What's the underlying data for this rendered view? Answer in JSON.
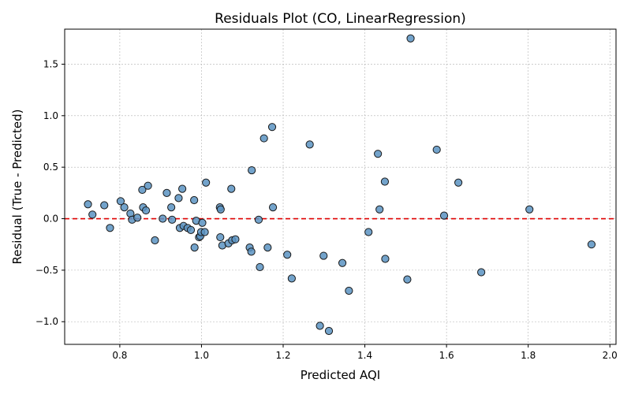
{
  "chart_data": {
    "type": "scatter",
    "title": "Residuals Plot (CO, LinearRegression)",
    "xlabel": "Predicted AQI",
    "ylabel": "Residual (True - Predicted)",
    "xlim": [
      0.665,
      2.015
    ],
    "ylim": [
      -1.22,
      1.84
    ],
    "xticks": [
      0.8,
      1.0,
      1.2,
      1.4,
      1.6,
      1.8,
      2.0
    ],
    "xtick_labels": [
      "0.8",
      "1.0",
      "1.2",
      "1.4",
      "1.6",
      "1.8",
      "2.0"
    ],
    "yticks": [
      -1.0,
      -0.5,
      0.0,
      0.5,
      1.0,
      1.5
    ],
    "ytick_labels": [
      "−1.0",
      "−0.5",
      "0.0",
      "0.5",
      "1.0",
      "1.5"
    ],
    "grid": true,
    "reference_line": {
      "y": 0,
      "style": "dashed",
      "color": "#e00000"
    },
    "marker_color": "#5b93c2",
    "marker_edge_color": "#1a1a1a",
    "points": [
      {
        "x": 0.722,
        "y": 0.14
      },
      {
        "x": 0.733,
        "y": 0.04
      },
      {
        "x": 0.762,
        "y": 0.13
      },
      {
        "x": 0.776,
        "y": -0.09
      },
      {
        "x": 0.802,
        "y": 0.17
      },
      {
        "x": 0.811,
        "y": 0.11
      },
      {
        "x": 0.826,
        "y": 0.05
      },
      {
        "x": 0.83,
        "y": -0.01
      },
      {
        "x": 0.843,
        "y": 0.01
      },
      {
        "x": 0.855,
        "y": 0.28
      },
      {
        "x": 0.857,
        "y": 0.11
      },
      {
        "x": 0.864,
        "y": 0.08
      },
      {
        "x": 0.869,
        "y": 0.32
      },
      {
        "x": 0.886,
        "y": -0.21
      },
      {
        "x": 0.905,
        "y": 0.0
      },
      {
        "x": 0.915,
        "y": 0.25
      },
      {
        "x": 0.926,
        "y": 0.11
      },
      {
        "x": 0.928,
        "y": -0.01
      },
      {
        "x": 0.944,
        "y": 0.2
      },
      {
        "x": 0.947,
        "y": -0.09
      },
      {
        "x": 0.953,
        "y": 0.29
      },
      {
        "x": 0.956,
        "y": -0.07
      },
      {
        "x": 0.966,
        "y": -0.09
      },
      {
        "x": 0.974,
        "y": -0.11
      },
      {
        "x": 0.982,
        "y": 0.18
      },
      {
        "x": 0.983,
        "y": -0.28
      },
      {
        "x": 0.987,
        "y": -0.02
      },
      {
        "x": 0.994,
        "y": -0.18
      },
      {
        "x": 0.997,
        "y": -0.17
      },
      {
        "x": 0.999,
        "y": -0.13
      },
      {
        "x": 1.002,
        "y": -0.04
      },
      {
        "x": 1.008,
        "y": -0.13
      },
      {
        "x": 1.011,
        "y": 0.35
      },
      {
        "x": 1.045,
        "y": 0.11
      },
      {
        "x": 1.046,
        "y": -0.18
      },
      {
        "x": 1.047,
        "y": 0.09
      },
      {
        "x": 1.051,
        "y": -0.26
      },
      {
        "x": 1.066,
        "y": -0.24
      },
      {
        "x": 1.073,
        "y": 0.29
      },
      {
        "x": 1.075,
        "y": -0.21
      },
      {
        "x": 1.083,
        "y": -0.2
      },
      {
        "x": 1.118,
        "y": -0.28
      },
      {
        "x": 1.122,
        "y": -0.32
      },
      {
        "x": 1.123,
        "y": 0.47
      },
      {
        "x": 1.14,
        "y": -0.01
      },
      {
        "x": 1.143,
        "y": -0.47
      },
      {
        "x": 1.153,
        "y": 0.78
      },
      {
        "x": 1.162,
        "y": -0.28
      },
      {
        "x": 1.173,
        "y": 0.89
      },
      {
        "x": 1.175,
        "y": 0.11
      },
      {
        "x": 1.21,
        "y": -0.35
      },
      {
        "x": 1.221,
        "y": -0.58
      },
      {
        "x": 1.265,
        "y": 0.72
      },
      {
        "x": 1.29,
        "y": -1.04
      },
      {
        "x": 1.299,
        "y": -0.36
      },
      {
        "x": 1.312,
        "y": -1.09
      },
      {
        "x": 1.345,
        "y": -0.43
      },
      {
        "x": 1.361,
        "y": -0.7
      },
      {
        "x": 1.409,
        "y": -0.13
      },
      {
        "x": 1.432,
        "y": 0.63
      },
      {
        "x": 1.436,
        "y": 0.09
      },
      {
        "x": 1.449,
        "y": 0.36
      },
      {
        "x": 1.45,
        "y": -0.39
      },
      {
        "x": 1.504,
        "y": -0.59
      },
      {
        "x": 1.512,
        "y": 1.75
      },
      {
        "x": 1.576,
        "y": 0.67
      },
      {
        "x": 1.594,
        "y": 0.03
      },
      {
        "x": 1.629,
        "y": 0.35
      },
      {
        "x": 1.685,
        "y": -0.52
      },
      {
        "x": 1.803,
        "y": 0.09
      },
      {
        "x": 1.955,
        "y": -0.25
      }
    ]
  }
}
